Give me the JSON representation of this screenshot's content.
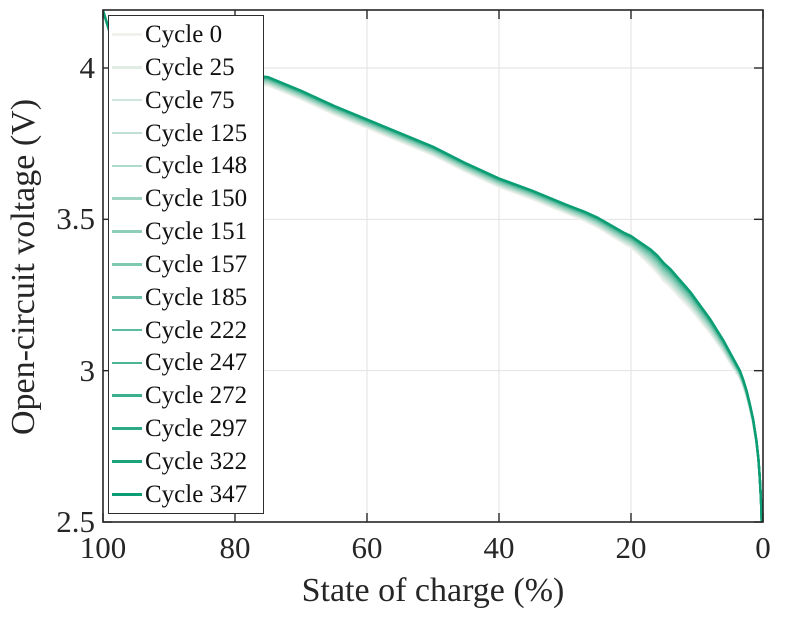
{
  "figure": {
    "kind": "matlab-style line plot",
    "background": "#ffffff"
  },
  "axes": {
    "x": {
      "label": "State of charge (%)",
      "tick_labels": [
        "100",
        "80",
        "60",
        "40",
        "20",
        "0"
      ],
      "tick_values": [
        100,
        80,
        60,
        40,
        20,
        0
      ],
      "direction": "reversed"
    },
    "y": {
      "label": "Open-circuit voltage (V)",
      "tick_labels": [
        "2.5",
        "3",
        "3.5",
        "4"
      ],
      "tick_values": [
        2.5,
        3,
        3.5,
        4
      ]
    },
    "colors": {
      "axis": "#262626",
      "grid": "#e2e2e2",
      "tick_text": "#262626"
    }
  },
  "legend": {
    "position": "upper-left",
    "border_color": "#2e2e2e",
    "background": "#ffffff"
  },
  "chart_data": {
    "type": "line",
    "title": "",
    "xlabel": "State of charge (%)",
    "ylabel": "Open-circuit voltage (V)",
    "xlim": [
      100,
      0
    ],
    "ylim": [
      2.5,
      4.19
    ],
    "grid": true,
    "legend_position": "upper-left",
    "x_soc_percent": [
      100,
      99,
      98,
      96,
      93,
      90,
      85,
      80,
      75,
      70,
      65,
      60,
      55,
      50,
      45,
      40,
      35,
      30,
      27,
      25,
      23,
      21,
      20,
      19,
      18,
      17,
      16,
      15,
      14,
      13,
      12,
      11,
      10,
      9,
      8,
      7,
      6,
      5,
      4,
      3.5,
      3,
      2.5,
      2,
      1.5,
      1,
      0.7,
      0.5,
      0.3,
      0.2
    ],
    "base_voltage_v": [
      4.19,
      4.12,
      4.08,
      4.05,
      4.02,
      4.0,
      3.99,
      3.98,
      3.97,
      3.925,
      3.875,
      3.83,
      3.785,
      3.74,
      3.685,
      3.635,
      3.595,
      3.55,
      3.525,
      3.505,
      3.48,
      3.455,
      3.445,
      3.43,
      3.415,
      3.4,
      3.38,
      3.355,
      3.335,
      3.31,
      3.285,
      3.26,
      3.23,
      3.2,
      3.17,
      3.135,
      3.1,
      3.06,
      3.02,
      3.0,
      2.97,
      2.935,
      2.89,
      2.84,
      2.77,
      2.71,
      2.65,
      2.57,
      2.5
    ],
    "aging_offset_v": [
      0,
      0.004,
      0.008,
      0.012,
      0.016,
      0.02,
      0.024,
      0.026,
      0.028,
      0.028,
      0.028,
      0.028,
      0.028,
      0.028,
      0.028,
      0.028,
      0.028,
      0.028,
      0.03,
      0.032,
      0.034,
      0.036,
      0.038,
      0.042,
      0.048,
      0.054,
      0.058,
      0.06,
      0.06,
      0.06,
      0.058,
      0.056,
      0.052,
      0.05,
      0.046,
      0.042,
      0.038,
      0.034,
      0.028,
      0.025,
      0.022,
      0.019,
      0.016,
      0.013,
      0.009,
      0.006,
      0.004,
      0.002,
      0
    ],
    "series": [
      {
        "name": "Cycle 0",
        "color": "#f1f2ee",
        "offset_scale": 1.0
      },
      {
        "name": "Cycle 25",
        "color": "#e1ece5",
        "offset_scale": 0.888
      },
      {
        "name": "Cycle 75",
        "color": "#d0e6dc",
        "offset_scale": 0.782
      },
      {
        "name": "Cycle 125",
        "color": "#c0e0d4",
        "offset_scale": 0.68
      },
      {
        "name": "Cycle 148",
        "color": "#afdacb",
        "offset_scale": 0.584
      },
      {
        "name": "Cycle 150",
        "color": "#9fd4c2",
        "offset_scale": 0.493
      },
      {
        "name": "Cycle 151",
        "color": "#8eceb9",
        "offset_scale": 0.409
      },
      {
        "name": "Cycle 157",
        "color": "#7ec8b1",
        "offset_scale": 0.33
      },
      {
        "name": "Cycle 185",
        "color": "#6ec1a8",
        "offset_scale": 0.258
      },
      {
        "name": "Cycle 222",
        "color": "#5dbb9f",
        "offset_scale": 0.193
      },
      {
        "name": "Cycle 247",
        "color": "#4db596",
        "offset_scale": 0.135
      },
      {
        "name": "Cycle 272",
        "color": "#3caf8d",
        "offset_scale": 0.085
      },
      {
        "name": "Cycle 297",
        "color": "#2ca985",
        "offset_scale": 0.045
      },
      {
        "name": "Cycle 322",
        "color": "#1ba37c",
        "offset_scale": 0.015
      },
      {
        "name": "Cycle 347",
        "color": "#0b9d73",
        "offset_scale": 0
      }
    ]
  }
}
